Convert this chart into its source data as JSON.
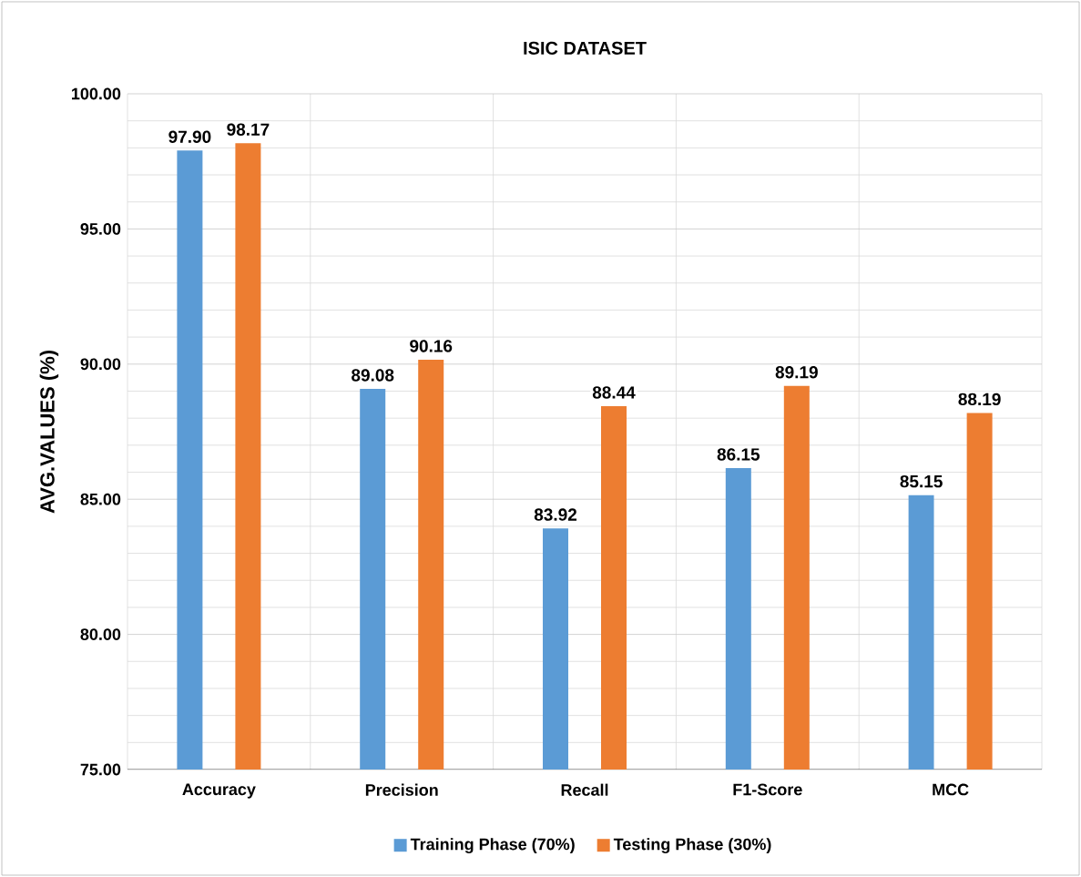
{
  "chart_data": {
    "type": "bar",
    "title": "ISIC DATASET",
    "ylabel": "AVG.VALUES (%)",
    "categories": [
      "Accuracy",
      "Precision",
      "Recall",
      "F1-Score",
      "MCC"
    ],
    "series": [
      {
        "name": "Training Phase (70%)",
        "color": "#5b9bd5",
        "values": [
          97.9,
          89.08,
          83.92,
          86.15,
          85.15
        ],
        "value_labels": [
          "97.90",
          "89.08",
          "83.92",
          "86.15",
          "85.15"
        ]
      },
      {
        "name": "Testing Phase (30%)",
        "color": "#ed7d31",
        "values": [
          98.17,
          90.16,
          88.44,
          89.19,
          88.19
        ],
        "value_labels": [
          "98.17",
          "90.16",
          "88.44",
          "89.19",
          "88.19"
        ]
      }
    ],
    "ylim": [
      75,
      100
    ],
    "yticks": [
      {
        "value": 75,
        "label": "75.00"
      },
      {
        "value": 80,
        "label": "80.00"
      },
      {
        "value": 85,
        "label": "85.00"
      },
      {
        "value": 90,
        "label": "90.00"
      },
      {
        "value": 95,
        "label": "95.00"
      },
      {
        "value": 100,
        "label": "100.00"
      }
    ],
    "grid": true,
    "legend": "bottom"
  }
}
